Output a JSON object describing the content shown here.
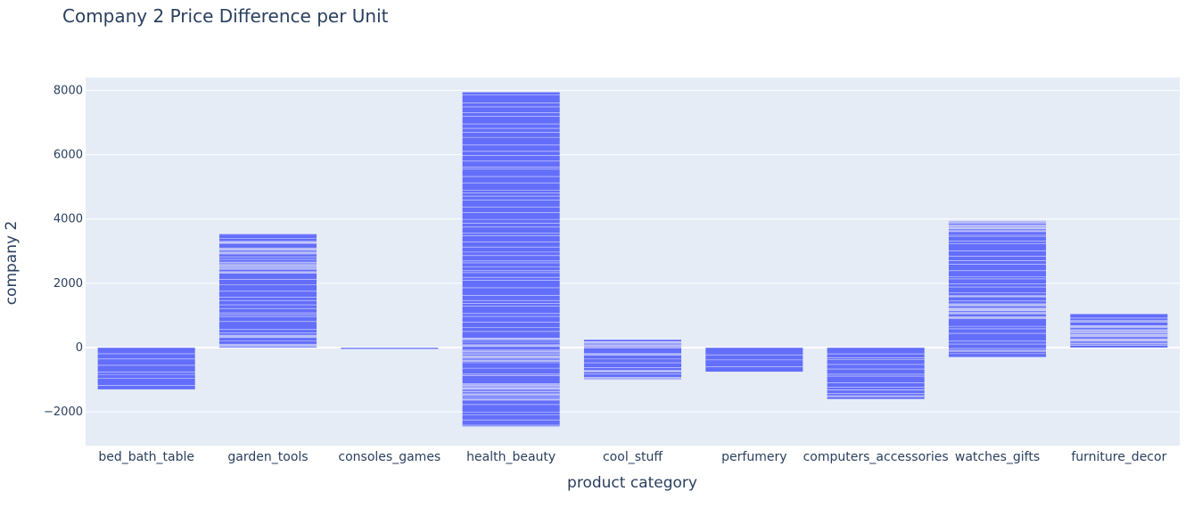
{
  "chart_data": {
    "type": "bar",
    "title": "Company 2 Price Difference per Unit",
    "xlabel": "product category",
    "ylabel": "company 2",
    "ylim": [
      -3050,
      8400
    ],
    "y_ticks": [
      8000,
      6000,
      4000,
      2000,
      0,
      -2000
    ],
    "y_tick_labels": [
      "8000",
      "6000",
      "4000",
      "2000",
      "0",
      "−2000"
    ],
    "grid": true,
    "categories": [
      "bed_bath_table",
      "garden_tools",
      "consoles_games",
      "health_beauty",
      "cool_stuff",
      "perfumery",
      "computers_accessories",
      "watches_gifts",
      "furniture_decor"
    ],
    "ranges": [
      {
        "category": "bed_bath_table",
        "min": -1300,
        "max": 0
      },
      {
        "category": "garden_tools",
        "min": 0,
        "max": 3550
      },
      {
        "category": "consoles_games",
        "min": 0,
        "max": 0
      },
      {
        "category": "health_beauty",
        "min": -2450,
        "max": 7950
      },
      {
        "category": "cool_stuff",
        "min": -1000,
        "max": 250
      },
      {
        "category": "perfumery",
        "min": -750,
        "max": 0
      },
      {
        "category": "computers_accessories",
        "min": -1600,
        "max": 0
      },
      {
        "category": "watches_gifts",
        "min": -300,
        "max": 3950
      },
      {
        "category": "furniture_decor",
        "min": 0,
        "max": 1050
      }
    ],
    "colors": {
      "bar": "#636efa",
      "bar_light": "#d4d8f8",
      "plot_bg": "#e5ecf6",
      "grid": "#ffffff",
      "text": "#2a3f5f"
    }
  }
}
